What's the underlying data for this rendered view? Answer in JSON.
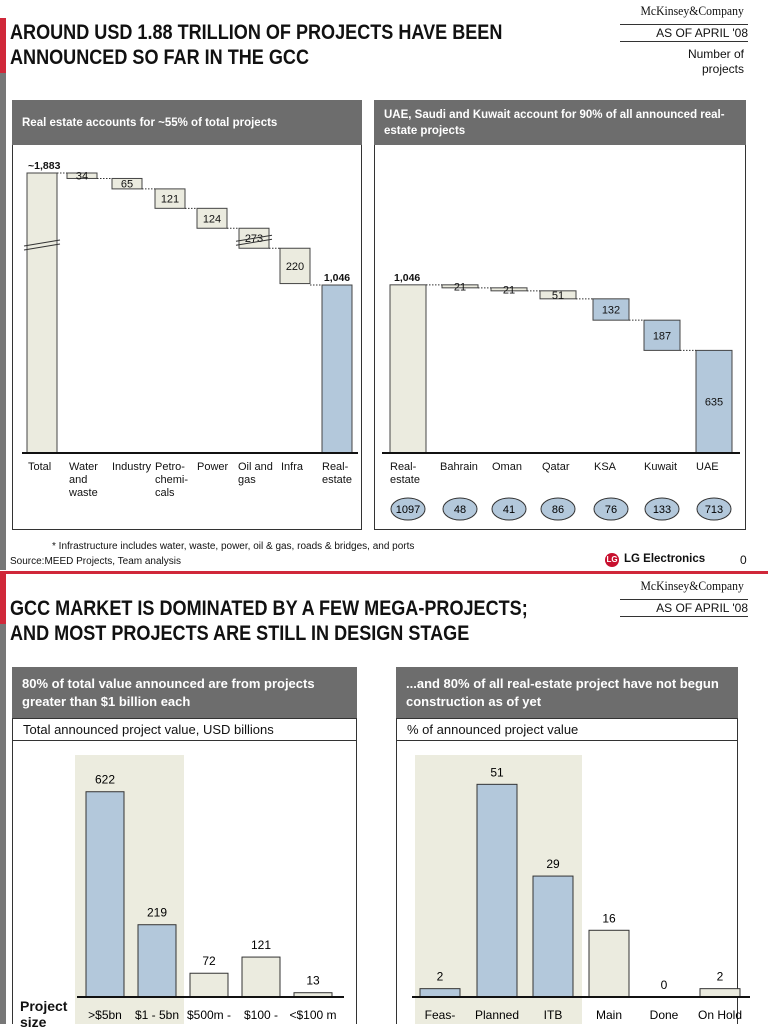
{
  "slide1": {
    "brand": "McKinsey&Company",
    "as_of": "AS OF APRIL '08",
    "title_line1": "AROUND USD 1.88 TRILLION OF PROJECTS HAVE BEEN",
    "title_line2": "ANNOUNCED SO FAR IN THE GCC",
    "unit_note_line1": "Number of",
    "unit_note_line2": "projects",
    "left_panel_header": "Real estate accounts for ~55% of total projects",
    "right_panel_header": "UAE, Saudi and Kuwait account for 90% of all announced real-estate projects",
    "footnote": "* Infrastructure includes water, waste, power, oil & gas, roads & bridges, and ports",
    "source": "Source:MEED Projects, Team analysis",
    "client": "LG Electronics",
    "page_number": "0"
  },
  "slide2": {
    "brand": "McKinsey&Company",
    "as_of": "AS OF APRIL '08",
    "title_line1": "GCC MARKET IS DOMINATED BY A FEW MEGA-PROJECTS;",
    "title_line2": "AND MOST PROJECTS ARE STILL IN DESIGN STAGE",
    "left_panel_header": "80% of total value announced are from projects greater than $1 billion each",
    "right_panel_header": "...and 80%  of all real-estate project have not begun construction as of yet",
    "left_subtitle": "Total announced project value, USD billions",
    "right_subtitle": "% of announced project value",
    "axis_label": "Project size"
  },
  "colors": {
    "beige": "#ebebdf",
    "blue": "#b3c8db",
    "header_grey": "#6d6d6d",
    "accent_red": "#d0283a",
    "shade": "#ececdf"
  },
  "chart_data": [
    {
      "type": "waterfall",
      "title": "Real estate accounts for ~55% of total projects",
      "categories": [
        "Total",
        "Water and waste",
        "Industry",
        "Petro-chemi-cals",
        "Power",
        "Oil and gas",
        "Infra",
        "Real-estate"
      ],
      "category_lines": [
        [
          "Total"
        ],
        [
          "Water",
          "and",
          "waste"
        ],
        [
          "Industry"
        ],
        [
          "Petro-",
          "chemi-",
          "cals"
        ],
        [
          "Power"
        ],
        [
          "Oil and",
          "gas"
        ],
        [
          "Infra"
        ],
        [
          "Real-",
          "estate"
        ]
      ],
      "values": [
        1883,
        34,
        65,
        121,
        124,
        273,
        220,
        1046
      ],
      "labels": [
        "~1,883",
        "34",
        "65",
        "121",
        "124",
        "273",
        "220",
        "1,046"
      ],
      "kinds": [
        "total",
        "step",
        "step",
        "step",
        "step",
        "step",
        "step",
        "total"
      ],
      "colors": [
        "beige",
        "beige",
        "beige",
        "beige",
        "beige",
        "beige",
        "beige",
        "blue"
      ],
      "axis_breaks": [
        "Total",
        "Oil and gas"
      ]
    },
    {
      "type": "waterfall",
      "title": "UAE, Saudi and Kuwait account for 90% of all announced real-estate projects",
      "categories": [
        "Real-estate",
        "Bahrain",
        "Oman",
        "Qatar",
        "KSA",
        "Kuwait",
        "UAE"
      ],
      "category_lines": [
        [
          "Real-",
          "estate"
        ],
        [
          "Bahrain"
        ],
        [
          "Oman"
        ],
        [
          "Qatar"
        ],
        [
          "KSA"
        ],
        [
          "Kuwait"
        ],
        [
          "UAE"
        ]
      ],
      "values": [
        1046,
        21,
        21,
        51,
        132,
        187,
        635
      ],
      "labels": [
        "1,046",
        "21",
        "21",
        "51",
        "132",
        "187",
        "635"
      ],
      "kinds": [
        "total",
        "step",
        "step",
        "step",
        "step",
        "step",
        "step"
      ],
      "colors": [
        "beige",
        "beige",
        "beige",
        "beige",
        "blue",
        "blue",
        "blue"
      ],
      "bubbles": [
        "1097",
        "48",
        "41",
        "86",
        "76",
        "133",
        "713"
      ]
    },
    {
      "type": "bar",
      "title": "80% of total value announced are from projects greater than $1 billion each",
      "ylabel": "Total announced project value, USD billions",
      "xlabel": "Project size",
      "categories": [
        ">$5bn",
        "$1 - 5bn",
        "$500m - ",
        "$100 -",
        "<$100 m"
      ],
      "values": [
        622,
        219,
        72,
        121,
        13
      ],
      "colors": [
        "blue",
        "blue",
        "beige",
        "beige",
        "beige"
      ],
      "highlight": [
        ">$5bn",
        "$1 - 5bn"
      ]
    },
    {
      "type": "bar",
      "title": "...and 80%  of all real-estate project have not begun construction as of yet",
      "ylabel": "% of announced project value",
      "categories": [
        "Feas-",
        "Planned",
        "ITB",
        "Main",
        "Done",
        "On Hold"
      ],
      "values": [
        2,
        51,
        29,
        16,
        0,
        2
      ],
      "colors": [
        "blue",
        "blue",
        "blue",
        "beige",
        "beige",
        "beige"
      ],
      "highlight": [
        "Feas-",
        "Planned",
        "ITB"
      ]
    }
  ]
}
